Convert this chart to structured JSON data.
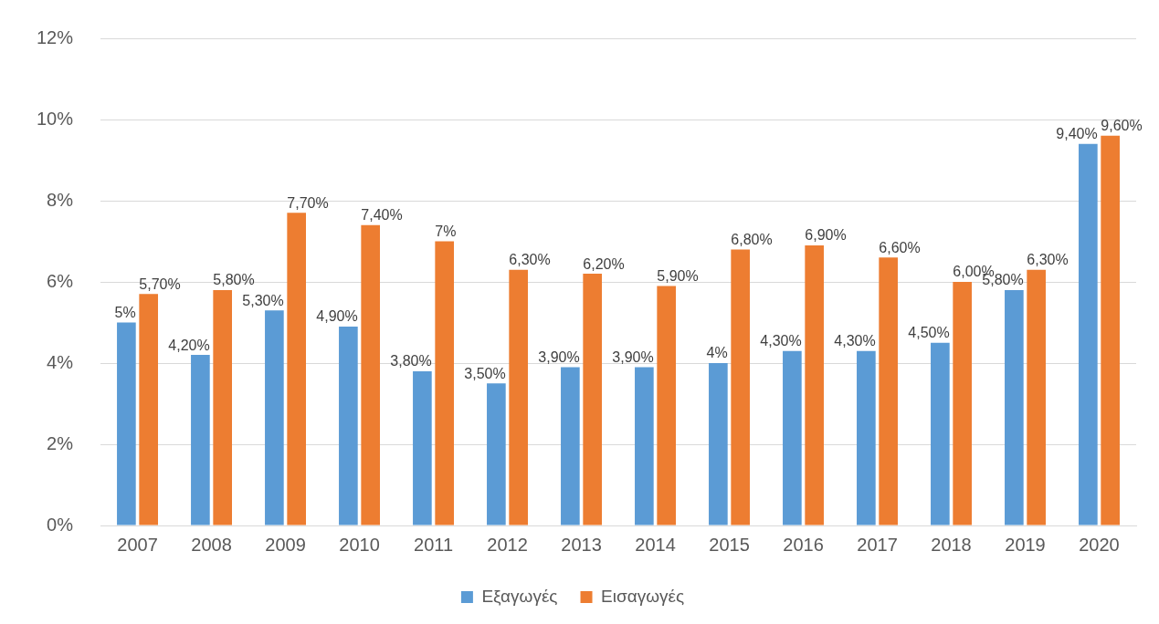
{
  "chart_data": {
    "type": "bar",
    "categories": [
      "2007",
      "2008",
      "2009",
      "2010",
      "2011",
      "2012",
      "2013",
      "2014",
      "2015",
      "2016",
      "2017",
      "2018",
      "2019",
      "2020"
    ],
    "series": [
      {
        "name": "Εξαγωγές",
        "color": "#5b9bd5",
        "values": [
          5,
          4.2,
          5.3,
          4.9,
          3.8,
          3.5,
          3.9,
          3.9,
          4,
          4.3,
          4.3,
          4.5,
          5.8,
          9.4
        ],
        "value_labels": [
          "5%",
          "4,20%",
          "5,30%",
          "4,90%",
          "3,80%",
          "3,50%",
          "3,90%",
          "3,90%",
          "4%",
          "4,30%",
          "4,30%",
          "4,50%",
          "5,80%",
          "9,40%"
        ]
      },
      {
        "name": "Εισαγωγές",
        "color": "#ed7d31",
        "values": [
          5.7,
          5.8,
          7.7,
          7.4,
          7,
          6.3,
          6.2,
          5.9,
          6.8,
          6.9,
          6.6,
          6.0,
          6.3,
          9.6
        ],
        "value_labels": [
          "5,70%",
          "5,80%",
          "7,70%",
          "7,40%",
          "7%",
          "6,30%",
          "6,20%",
          "5,90%",
          "6,80%",
          "6,90%",
          "6,60%",
          "6,00%",
          "6,30%",
          "9,60%"
        ]
      }
    ],
    "ylim": [
      0,
      12
    ],
    "yticks": [
      {
        "value": 0,
        "label": "0%"
      },
      {
        "value": 2,
        "label": "2%"
      },
      {
        "value": 4,
        "label": "4%"
      },
      {
        "value": 6,
        "label": "6%"
      },
      {
        "value": 8,
        "label": "8%"
      },
      {
        "value": 10,
        "label": "10%"
      },
      {
        "value": 12,
        "label": "12%"
      }
    ],
    "grid": "y",
    "legend": "bottom"
  }
}
